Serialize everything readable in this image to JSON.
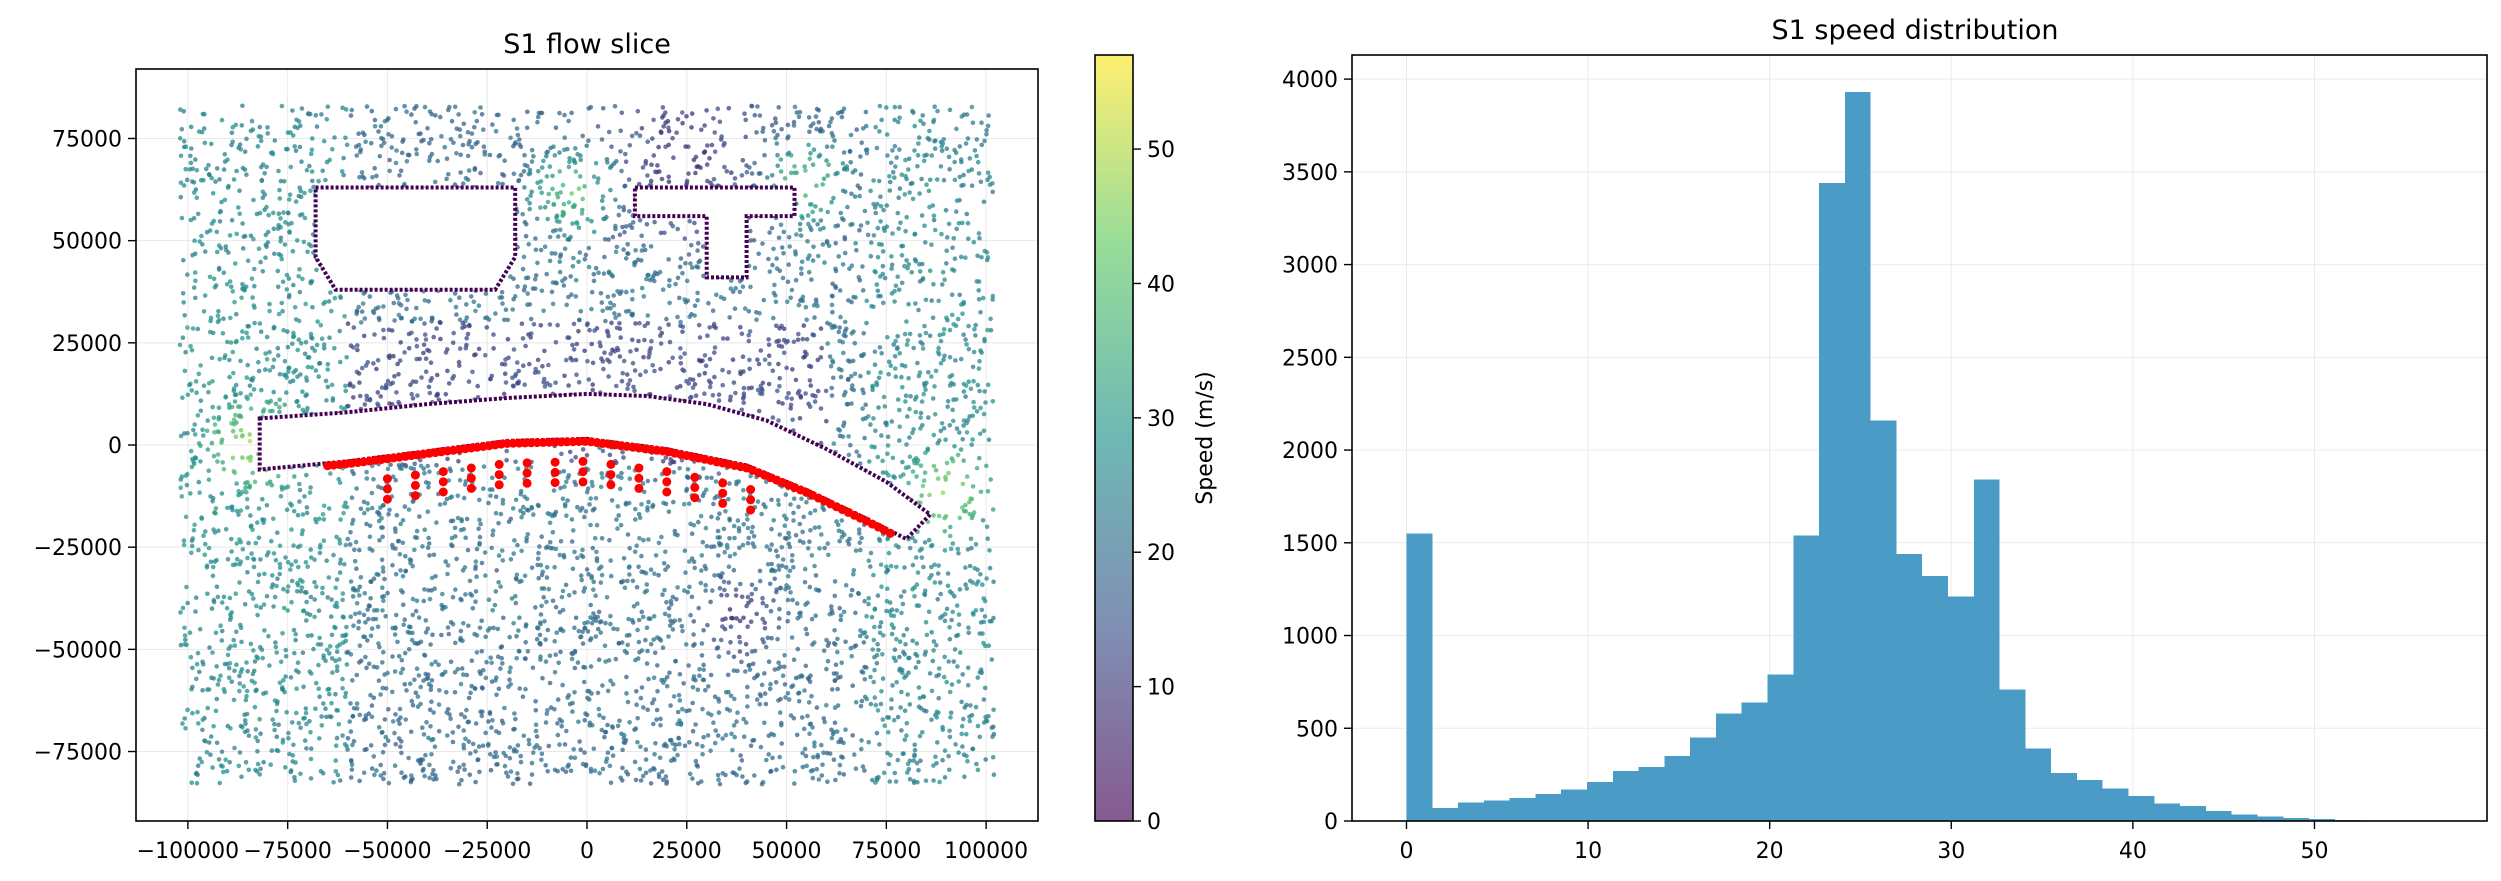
{
  "chart_data": [
    {
      "type": "scatter",
      "title": "S1 flow slice",
      "xlabel": "",
      "ylabel": "",
      "xlim": [
        -113000,
        113000
      ],
      "ylim": [
        -92000,
        92000
      ],
      "xticks": [
        -100000,
        -75000,
        -50000,
        -25000,
        0,
        25000,
        50000,
        75000,
        100000
      ],
      "xtick_labels": [
        "−100000",
        "−75000",
        "−50000",
        "−25000",
        "0",
        "25000",
        "50000",
        "75000",
        "100000"
      ],
      "yticks": [
        -75000,
        -50000,
        -25000,
        0,
        25000,
        50000,
        75000
      ],
      "ytick_labels": [
        "−75000",
        "−50000",
        "−25000",
        "0",
        "25000",
        "50000",
        "75000"
      ],
      "domain_x": [
        -102000,
        102000
      ],
      "domain_y": [
        -83000,
        83000
      ],
      "colorbar": {
        "label": "Speed (m/s)",
        "range": [
          0,
          57
        ],
        "ticks": [
          0,
          10,
          20,
          30,
          40,
          50
        ],
        "tick_labels": [
          "0",
          "10",
          "20",
          "30",
          "40",
          "50"
        ],
        "colormap": "viridis"
      },
      "obstacles": [
        {
          "name": "box",
          "outline": [
            [
              -68000,
              63000
            ],
            [
              -18000,
              63000
            ],
            [
              -18000,
              46000
            ],
            [
              -23000,
              38000
            ],
            [
              -63000,
              38000
            ],
            [
              -68000,
              46000
            ]
          ]
        },
        {
          "name": "tee",
          "outline": [
            [
              12000,
              63000
            ],
            [
              52000,
              63000
            ],
            [
              52000,
              56000
            ],
            [
              40000,
              56000
            ],
            [
              40000,
              41000
            ],
            [
              30000,
              41000
            ],
            [
              30000,
              56000
            ],
            [
              12000,
              56000
            ]
          ]
        }
      ],
      "airfoil_top": [
        [
          -82000,
          6500
        ],
        [
          -60000,
          8000
        ],
        [
          -40000,
          10000
        ],
        [
          -20000,
          11500
        ],
        [
          0,
          12500
        ],
        [
          15000,
          12000
        ],
        [
          30000,
          10000
        ],
        [
          45000,
          6000
        ],
        [
          60000,
          -1000
        ],
        [
          75000,
          -9000
        ],
        [
          86000,
          -17000
        ]
      ],
      "airfoil_bottom": [
        [
          86000,
          -17000
        ],
        [
          80000,
          -23000
        ],
        [
          70000,
          -18000
        ],
        [
          55000,
          -11000
        ],
        [
          40000,
          -5000
        ],
        [
          20000,
          -1000
        ],
        [
          0,
          1500
        ],
        [
          -20000,
          1000
        ],
        [
          -40000,
          -1500
        ],
        [
          -60000,
          -4000
        ],
        [
          -82000,
          -6000
        ]
      ],
      "vortex_center": [
        38000,
        -42000
      ],
      "highlighted_series": {
        "color": "#ff0000",
        "count": 150
      },
      "colors": {
        "accent_highlight": "#ff0000"
      }
    },
    {
      "type": "bar",
      "title": "S1 speed distribution",
      "xlabel": "",
      "ylabel": "",
      "xlim": [
        -3,
        59.5
      ],
      "ylim": [
        0,
        4130
      ],
      "xticks": [
        0,
        10,
        20,
        30,
        40,
        50
      ],
      "xtick_labels": [
        "0",
        "10",
        "20",
        "30",
        "40",
        "50"
      ],
      "yticks": [
        0,
        500,
        1000,
        1500,
        2000,
        2500,
        3000,
        3500,
        4000
      ],
      "ytick_labels": [
        "0",
        "500",
        "1000",
        "1500",
        "2000",
        "2500",
        "3000",
        "3500",
        "4000"
      ],
      "bin_edges_start": 0,
      "bin_width": 1.42,
      "values": [
        1550,
        70,
        100,
        110,
        125,
        145,
        170,
        210,
        270,
        290,
        350,
        450,
        580,
        640,
        790,
        1540,
        3440,
        3930,
        2160,
        1440,
        1320,
        1210,
        1840,
        710,
        390,
        260,
        220,
        175,
        135,
        95,
        80,
        55,
        35,
        25,
        15,
        10,
        6,
        4,
        2,
        1
      ],
      "colors": {
        "bar": "#4a9cc7"
      }
    }
  ]
}
